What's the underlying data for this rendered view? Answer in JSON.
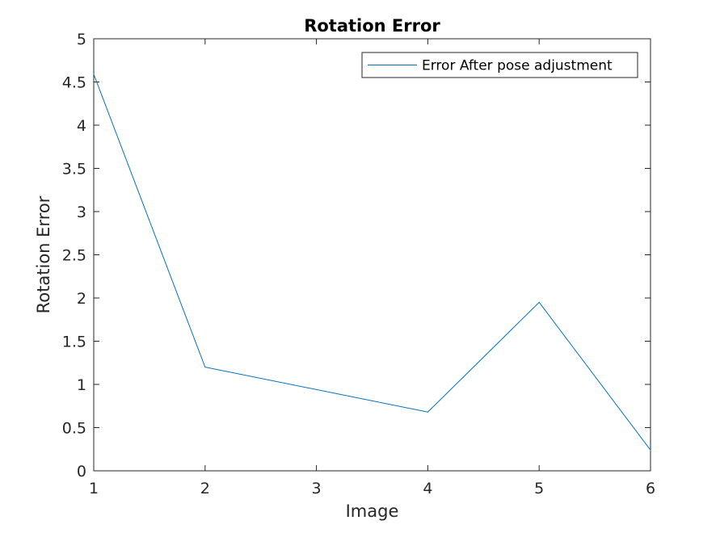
{
  "chart_data": {
    "type": "line",
    "title": "Rotation Error",
    "xlabel": "Image",
    "ylabel": "Rotation Error",
    "xlim": [
      1,
      6
    ],
    "ylim": [
      0,
      5
    ],
    "x_ticks": [
      1,
      2,
      3,
      4,
      5,
      6
    ],
    "x_tick_labels": [
      "1",
      "2",
      "3",
      "4",
      "5",
      "6"
    ],
    "y_ticks": [
      0,
      0.5,
      1,
      1.5,
      2,
      2.5,
      3,
      3.5,
      4,
      4.5,
      5
    ],
    "y_tick_labels": [
      "0",
      "0.5",
      "1",
      "1.5",
      "2",
      "2.5",
      "3",
      "3.5",
      "4",
      "4.5",
      "5"
    ],
    "grid": false,
    "legend_position": "top-right",
    "series": [
      {
        "name": "Error After pose adjustment",
        "color": "#0072BD",
        "x": [
          1,
          2,
          4,
          5,
          6
        ],
        "y": [
          4.59,
          1.2,
          0.68,
          1.95,
          0.24
        ]
      }
    ]
  }
}
